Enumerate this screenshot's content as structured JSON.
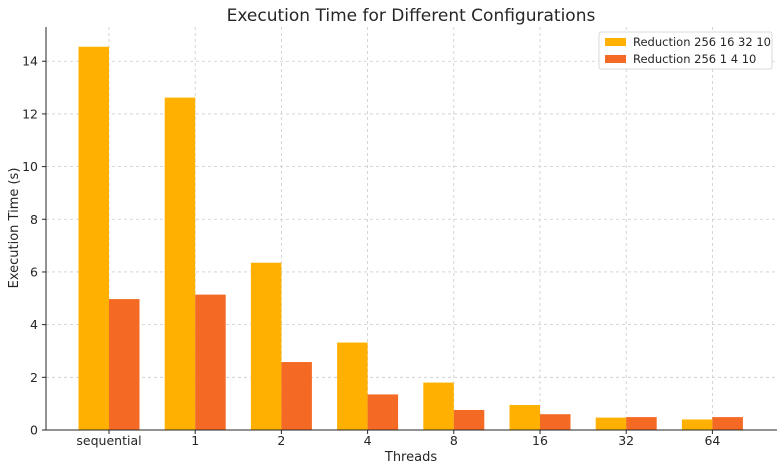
{
  "chart_data": {
    "type": "bar",
    "title": "Execution Time for Different Configurations",
    "xlabel": "Threads",
    "ylabel": "Execution Time (s)",
    "categories": [
      "sequential",
      "1",
      "2",
      "4",
      "8",
      "16",
      "32",
      "64"
    ],
    "series": [
      {
        "name": "Reduction 256 16 32 10",
        "color": "#FFB000",
        "values": [
          14.55,
          12.62,
          6.35,
          3.32,
          1.8,
          0.95,
          0.47,
          0.4
        ]
      },
      {
        "name": "Reduction 256 1 4 10",
        "color": "#F46A25",
        "values": [
          4.97,
          5.14,
          2.58,
          1.35,
          0.76,
          0.6,
          0.49,
          0.49
        ]
      }
    ],
    "yticks": [
      0,
      2,
      4,
      6,
      8,
      10,
      12,
      14
    ],
    "ylim": [
      0,
      15.3
    ],
    "grid": true,
    "legend_position": "top-right"
  }
}
